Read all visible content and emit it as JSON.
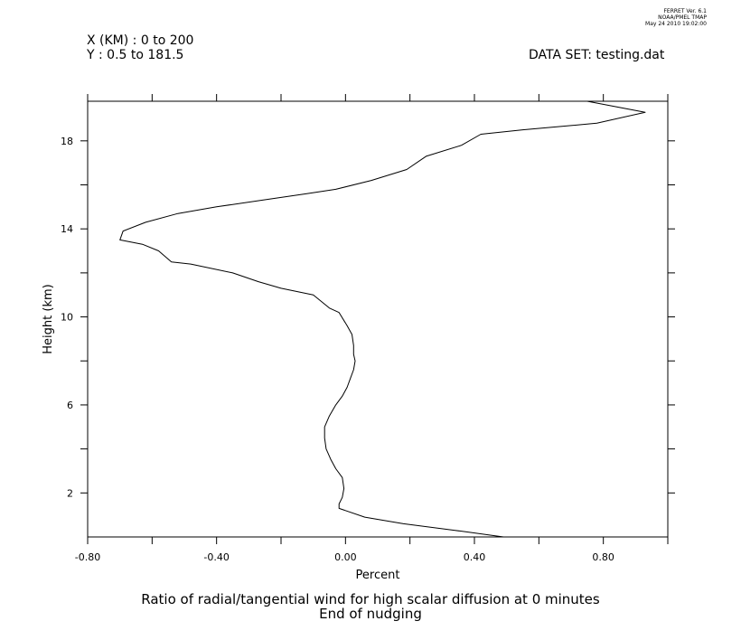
{
  "header": {
    "x_range": "X (KM) : 0 to 200",
    "y_range": "Y : 0.5 to 181.5",
    "dataset": "DATA SET: testing.dat",
    "stamp_line1": "FERRET Ver. 6.1",
    "stamp_line2": "NOAA/PMEL TMAP",
    "stamp_line3": "May 24 2010 19:02:00"
  },
  "chart_data": {
    "type": "line",
    "title": "Ratio of radial/tangential wind for high scalar diffusion at 0 minutes",
    "subtitle": "End of nudging",
    "xlabel": "Percent",
    "ylabel": "Height (km)",
    "xlim": [
      -0.8,
      1.0
    ],
    "ylim": [
      0.0,
      19.8
    ],
    "x_ticks": [
      -0.8,
      -0.6,
      -0.4,
      -0.2,
      0.0,
      0.2,
      0.4,
      0.6,
      0.8,
      1.0
    ],
    "x_tick_labels": [
      "-0.80",
      "-0.40",
      "0.00",
      "0.40",
      "0.80"
    ],
    "x_tick_label_values": [
      -0.8,
      -0.4,
      0.0,
      0.4,
      0.8
    ],
    "y_ticks": [
      2,
      4,
      6,
      8,
      10,
      12,
      14,
      16,
      18
    ],
    "y_tick_labels": [
      "2",
      "6",
      "10",
      "14",
      "18"
    ],
    "y_tick_label_values": [
      2,
      6,
      10,
      14,
      18
    ],
    "grid": false,
    "series": [
      {
        "x": [
          0.49,
          0.34,
          0.18,
          0.06,
          0.0,
          -0.02,
          -0.02,
          -0.01,
          -0.005,
          -0.01,
          -0.03,
          -0.045,
          -0.06,
          -0.065,
          -0.065,
          -0.05,
          -0.03,
          -0.01,
          0.005,
          0.015,
          0.025,
          0.03,
          0.025,
          0.025,
          0.02,
          0.005,
          -0.02,
          -0.05,
          -0.1,
          -0.2,
          -0.27,
          -0.35,
          -0.48,
          -0.54,
          -0.58,
          -0.63,
          -0.7,
          -0.69,
          -0.62,
          -0.52,
          -0.4,
          -0.26,
          -0.12,
          -0.03,
          0.08,
          0.19,
          0.25,
          0.36,
          0.42,
          0.55,
          0.78,
          0.93,
          0.75
        ],
        "y": [
          0.0,
          0.3,
          0.6,
          0.9,
          1.2,
          1.3,
          1.5,
          1.8,
          2.2,
          2.7,
          3.1,
          3.5,
          4.0,
          4.5,
          5.0,
          5.5,
          6.0,
          6.4,
          6.8,
          7.2,
          7.6,
          8.0,
          8.3,
          8.7,
          9.2,
          9.6,
          10.2,
          10.4,
          11.0,
          11.3,
          11.6,
          12.0,
          12.4,
          12.5,
          13.0,
          13.3,
          13.5,
          13.9,
          14.3,
          14.7,
          15.0,
          15.3,
          15.6,
          15.8,
          16.2,
          16.7,
          17.3,
          17.8,
          18.3,
          18.5,
          18.8,
          19.3,
          19.8
        ]
      }
    ]
  }
}
